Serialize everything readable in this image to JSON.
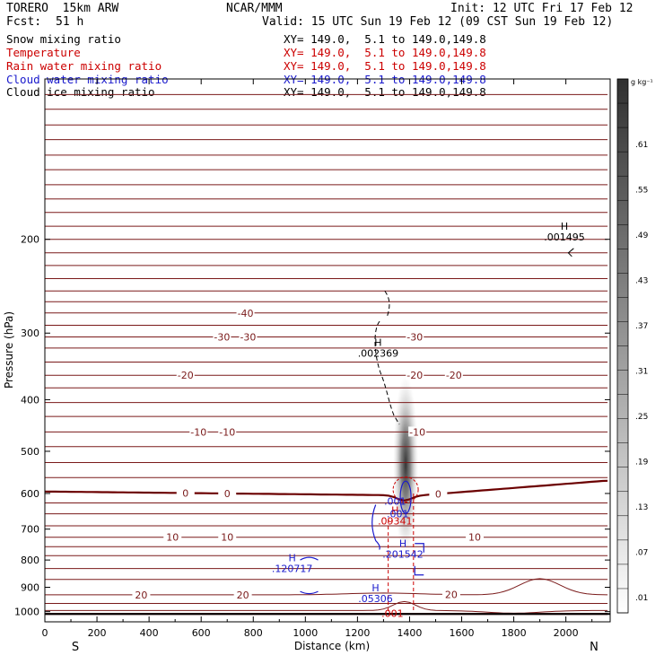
{
  "header": {
    "model": "TORERO  15km ARW",
    "org": "NCAR/MMM",
    "init": "Init: 12 UTC Fri 17 Feb 12",
    "fcst_label": "Fcst:",
    "fcst_value": "51 h",
    "valid": "Valid: 15 UTC Sun 19 Feb 12 (09 CST Sun 19 Feb 12)"
  },
  "fields": [
    {
      "name": "Snow mixing ratio",
      "xy": "XY= 149.0,  5.1 to 149.0,149.8",
      "color": "#000000"
    },
    {
      "name": "Temperature",
      "xy": "XY= 149.0,  5.1 to 149.0,149.8",
      "color": "#cc0000"
    },
    {
      "name": "Rain water mixing ratio",
      "xy": "XY= 149.0,  5.1 to 149.0,149.8",
      "color": "#cc0000"
    },
    {
      "name": "Cloud water mixing ratio",
      "xy": "XY= 149.0,  5.1 to 149.0,149.8",
      "color": "#1a1acc"
    },
    {
      "name": "Cloud ice mixing ratio",
      "xy": "XY= 149.0,  5.1 to 149.0,149.8",
      "color": "#000000"
    }
  ],
  "chart_data": {
    "type": "cross-section",
    "xlabel": "Distance (km)",
    "ylabel": "Pressure (hPa)",
    "x_ticks": [
      "0",
      "200",
      "400",
      "600",
      "800",
      "1000",
      "1200",
      "1400",
      "1600",
      "1800",
      "2000"
    ],
    "y_ticks": [
      "200",
      "300",
      "400",
      "500",
      "600",
      "700",
      "800",
      "900",
      "1000"
    ],
    "xlim": [
      0,
      2170
    ],
    "ylim": [
      1045,
      100
    ],
    "y_scale": "log",
    "end_labels": {
      "left": "S",
      "right": "N"
    },
    "colorbar": {
      "unit": "g kg⁻¹",
      "ticks": [
        ".01",
        ".07",
        ".13",
        ".19",
        ".25",
        ".31",
        ".37",
        ".43",
        ".49",
        ".55",
        ".61"
      ]
    },
    "snow_max": {
      "x": 1385,
      "p": 530,
      "value": ".61"
    },
    "temperature_isotherms_C": [
      {
        "p": 1010,
        "label": "",
        "shape": "flat",
        "thick": true
      },
      {
        "p": 995,
        "label": "",
        "shape": "bump"
      },
      {
        "p": 965,
        "label": "",
        "shape": "flat"
      },
      {
        "p": 930,
        "label": "20",
        "shape": "low_bump",
        "labels_x": [
          370,
          760,
          1560
        ]
      },
      {
        "p": 870,
        "label": "",
        "shape": "flat"
      },
      {
        "p": 830,
        "label": "",
        "shape": "flat"
      },
      {
        "p": 785,
        "label": "",
        "shape": "flat"
      },
      {
        "p": 755,
        "label": "",
        "shape": "flat"
      },
      {
        "p": 725,
        "label": "10",
        "shape": "flat",
        "labels_x": [
          490,
          700,
          1650
        ]
      },
      {
        "p": 690,
        "label": "",
        "shape": "flat"
      },
      {
        "p": 655,
        "label": "",
        "shape": "flat"
      },
      {
        "p": 625,
        "label": "",
        "shape": "flat"
      },
      {
        "p": 595,
        "label": "0",
        "shape": "freezing",
        "thick": true,
        "labels_x": [
          540,
          700,
          1510
        ]
      },
      {
        "p": 560,
        "label": "",
        "shape": "flat"
      },
      {
        "p": 525,
        "label": "",
        "shape": "flat"
      },
      {
        "p": 490,
        "label": "",
        "shape": "flat"
      },
      {
        "p": 460,
        "label": "-10",
        "shape": "flat",
        "labels_x": [
          590,
          700,
          1430
        ]
      },
      {
        "p": 430,
        "label": "",
        "shape": "flat"
      },
      {
        "p": 405,
        "label": "",
        "shape": "flat"
      },
      {
        "p": 380,
        "label": "",
        "shape": "flat"
      },
      {
        "p": 360,
        "label": "-20",
        "shape": "flat",
        "labels_x": [
          540,
          1420,
          1570
        ]
      },
      {
        "p": 340,
        "label": "",
        "shape": "flat"
      },
      {
        "p": 320,
        "label": "",
        "shape": "flat"
      },
      {
        "p": 305,
        "label": "-30",
        "shape": "flat",
        "labels_x": [
          680,
          780,
          1420
        ]
      },
      {
        "p": 290,
        "label": "",
        "shape": "flat"
      },
      {
        "p": 275,
        "label": "-40",
        "shape": "flat",
        "labels_x": [
          770
        ]
      },
      {
        "p": 262,
        "label": "",
        "shape": "flat"
      },
      {
        "p": 250,
        "label": "",
        "shape": "flat"
      },
      {
        "p": 237,
        "label": "",
        "shape": "flat"
      },
      {
        "p": 224,
        "label": "",
        "shape": "flat"
      },
      {
        "p": 212,
        "label": "",
        "shape": "flat"
      },
      {
        "p": 200,
        "label": "",
        "shape": "flat"
      },
      {
        "p": 189,
        "label": "",
        "shape": "flat"
      },
      {
        "p": 178,
        "label": "",
        "shape": "flat"
      },
      {
        "p": 168,
        "label": "",
        "shape": "flat"
      },
      {
        "p": 158,
        "label": "",
        "shape": "flat"
      },
      {
        "p": 148,
        "label": "",
        "shape": "flat"
      },
      {
        "p": 139,
        "label": "",
        "shape": "flat"
      },
      {
        "p": 130,
        "label": "",
        "shape": "flat"
      },
      {
        "p": 122,
        "label": "",
        "shape": "flat"
      },
      {
        "p": 114,
        "label": "",
        "shape": "flat"
      },
      {
        "p": 107,
        "label": "",
        "shape": "flat"
      },
      {
        "p": 100,
        "label": "",
        "shape": "flat"
      }
    ],
    "highs": [
      {
        "label": "H",
        "value": ".001495",
        "x": 1960,
        "p": 198,
        "color": "#000000"
      },
      {
        "label": "H",
        "value": ".002369",
        "x": 1245,
        "p": 327,
        "color": "#000000"
      },
      {
        "label": "H",
        "value": ".09341",
        "x": 1310,
        "p": 675,
        "color": "#cc0000"
      },
      {
        "label": "H",
        "value": ".201542",
        "x": 1340,
        "p": 780,
        "color": "#1a1acc"
      },
      {
        "label": "H",
        "value": ".120717",
        "x": 915,
        "p": 830,
        "color": "#1a1acc"
      },
      {
        "label": "H",
        "value": ".05306",
        "x": 1235,
        "p": 945,
        "color": "#1a1acc"
      }
    ],
    "contour_labels": [
      {
        "text": ".001",
        "x": 1310,
        "p": 620,
        "color": "#1a1acc"
      },
      {
        "text": ".001",
        "x": 1320,
        "p": 655,
        "color": "#1a1acc"
      },
      {
        "text": ".001",
        "x": 1300,
        "p": 1008,
        "color": "#cc0000"
      }
    ]
  }
}
